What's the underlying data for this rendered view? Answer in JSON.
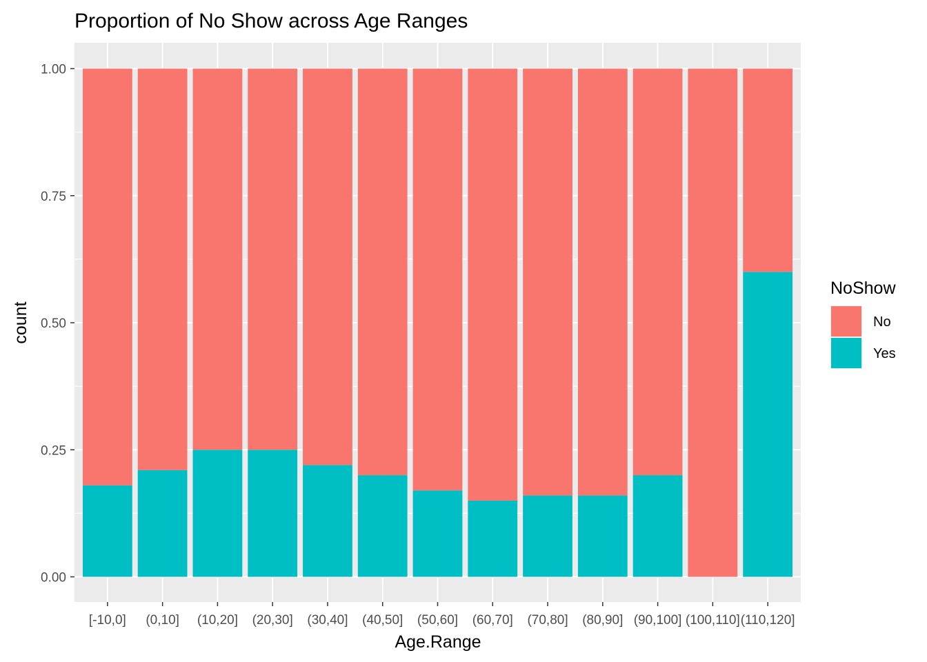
{
  "chart_data": {
    "type": "bar",
    "stacked": true,
    "title": "Proportion of No Show across Age Ranges",
    "xlabel": "Age.Range",
    "ylabel": "count",
    "ylim": [
      0,
      1
    ],
    "y_ticks": [
      "0.00",
      "0.25",
      "0.50",
      "0.75",
      "1.00"
    ],
    "grid": true,
    "legend": {
      "title": "NoShow",
      "position": "right"
    },
    "categories": [
      "[-10,0]",
      "(0,10]",
      "(10,20]",
      "(20,30]",
      "(30,40]",
      "(40,50]",
      "(50,60]",
      "(60,70]",
      "(70,80]",
      "(80,90]",
      "(90,100]",
      "(100,110]",
      "(110,120]"
    ],
    "series": [
      {
        "name": "No",
        "color": "#F8766D",
        "values": [
          0.82,
          0.79,
          0.75,
          0.75,
          0.78,
          0.8,
          0.83,
          0.85,
          0.84,
          0.84,
          0.8,
          1.0,
          0.4
        ]
      },
      {
        "name": "Yes",
        "color": "#00BFC4",
        "values": [
          0.18,
          0.21,
          0.25,
          0.25,
          0.22,
          0.2,
          0.17,
          0.15,
          0.16,
          0.16,
          0.2,
          0.0,
          0.6
        ]
      }
    ]
  }
}
